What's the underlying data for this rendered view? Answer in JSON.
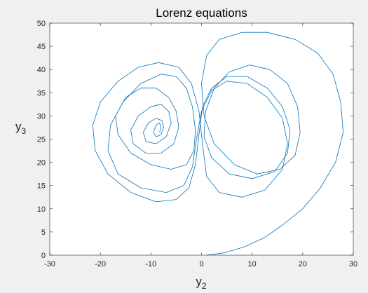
{
  "chart_data": {
    "type": "line",
    "title": "Lorenz equations",
    "xlabel": {
      "base": "y",
      "sub": "2"
    },
    "ylabel": {
      "base": "y",
      "sub": "3"
    },
    "xlim": [
      -30,
      30
    ],
    "ylim": [
      0,
      50
    ],
    "xticks": [
      -30,
      -20,
      -10,
      0,
      10,
      20,
      30
    ],
    "yticks": [
      0,
      5,
      10,
      15,
      20,
      25,
      30,
      35,
      40,
      45,
      50
    ],
    "grid": false,
    "legend": "none",
    "series": [
      {
        "color": "#0072bd",
        "description_points": "trajectory of y2 vs y3 (approximate)",
        "x": [
          1.0,
          4.5,
          8.5,
          12.5,
          16.0,
          20.0,
          23.5,
          26.5,
          28.0,
          27.5,
          26.0,
          23.0,
          18.5,
          13.0,
          8.0,
          3.5,
          1.0,
          0.0,
          0.5,
          2.5,
          6.5,
          11.0,
          15.5,
          18.5,
          19.5,
          19.0,
          17.0,
          13.5,
          9.5,
          5.5,
          2.5,
          0.8,
          0.5,
          2.0,
          5.5,
          10.0,
          14.5,
          17.0,
          17.5,
          16.0,
          13.0,
          9.0,
          5.0,
          2.0,
          0.2,
          -0.5,
          -1.2,
          -2.5,
          -5.0,
          -9.0,
          -14.0,
          -18.5,
          -21.0,
          -21.5,
          -20.0,
          -16.5,
          -12.5,
          -8.5,
          -4.5,
          -2.0,
          -0.5,
          0.2,
          1.0,
          3.5,
          8.0,
          12.5,
          16.0,
          17.0,
          16.0,
          13.0,
          9.0,
          5.0,
          2.0,
          0.0,
          -1.0,
          -1.8,
          -3.5,
          -7.0,
          -12.0,
          -16.5,
          -18.5,
          -18.0,
          -15.5,
          -12.0,
          -8.0,
          -5.0,
          -3.0,
          -1.8,
          -1.2,
          -1.5,
          -3.0,
          -6.0,
          -10.0,
          -14.0,
          -16.5,
          -17.0,
          -15.0,
          -12.0,
          -9.0,
          -6.5,
          -5.0,
          -4.5,
          -5.5,
          -8.0,
          -11.0,
          -13.5,
          -14.0,
          -12.5,
          -10.0,
          -8.0,
          -6.5,
          -6.0,
          -7.0,
          -9.0,
          -11.0,
          -11.5,
          -10.5,
          -9.0,
          -7.8,
          -7.5,
          -8.0,
          -9.0,
          -9.5,
          -9.0,
          -8.3,
          -8.0,
          -8.3
        ],
        "y": [
          0.0,
          0.5,
          1.8,
          3.8,
          6.5,
          10.0,
          14.5,
          20.0,
          26.5,
          33.0,
          39.0,
          43.5,
          46.5,
          48.0,
          48.0,
          46.5,
          43.0,
          37.0,
          30.0,
          24.0,
          19.5,
          17.5,
          18.5,
          21.5,
          26.5,
          32.0,
          37.0,
          40.0,
          41.0,
          39.5,
          36.0,
          31.0,
          25.5,
          21.0,
          17.5,
          16.5,
          18.0,
          22.0,
          27.0,
          32.0,
          36.0,
          38.5,
          38.5,
          36.0,
          32.0,
          26.0,
          19.5,
          14.5,
          12.0,
          11.5,
          13.5,
          17.5,
          22.5,
          28.0,
          33.0,
          37.5,
          40.5,
          41.5,
          40.5,
          37.0,
          31.0,
          24.0,
          17.0,
          13.5,
          12.5,
          14.0,
          18.5,
          24.0,
          29.5,
          34.0,
          37.0,
          37.5,
          35.5,
          31.0,
          25.0,
          19.0,
          15.0,
          13.5,
          14.5,
          17.5,
          22.5,
          28.0,
          33.0,
          37.0,
          39.0,
          38.5,
          36.0,
          32.0,
          27.0,
          22.5,
          19.5,
          18.5,
          19.5,
          22.0,
          26.0,
          30.0,
          34.0,
          36.0,
          36.0,
          34.0,
          31.0,
          27.5,
          24.0,
          22.0,
          22.0,
          24.0,
          27.0,
          30.0,
          32.0,
          32.5,
          31.0,
          28.5,
          25.5,
          24.0,
          24.5,
          26.5,
          28.5,
          29.5,
          29.0,
          27.5,
          26.0,
          25.5,
          26.5,
          28.0,
          28.5,
          27.5,
          26.5
        ]
      }
    ]
  }
}
